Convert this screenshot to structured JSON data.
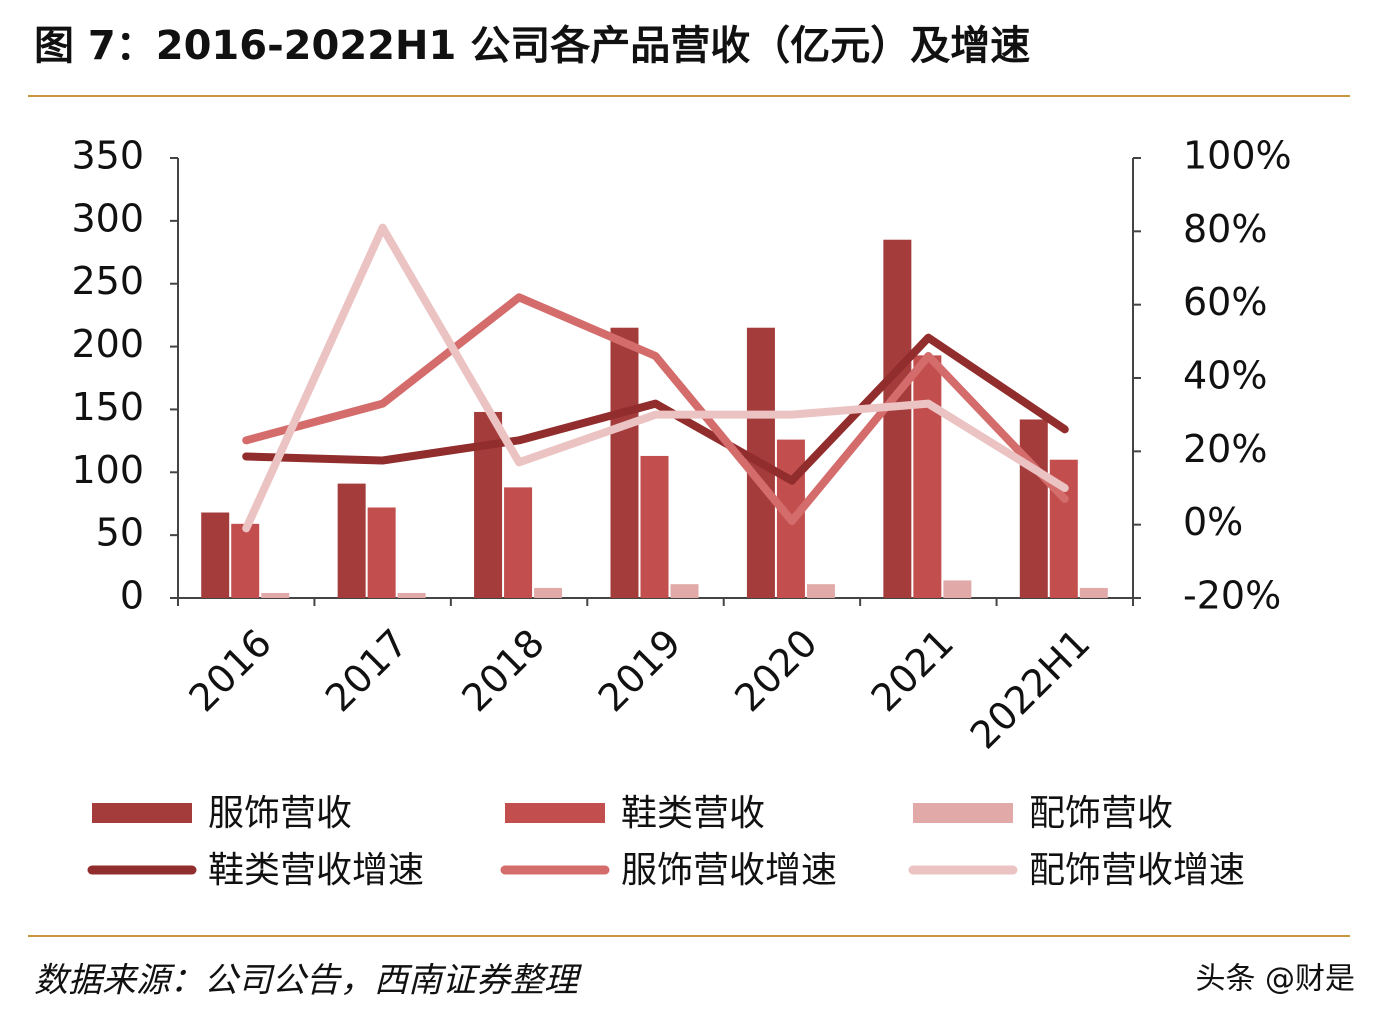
{
  "chart_data": {
    "type": "bar",
    "title": "图 7：2016-2022H1 公司各产品营收（亿元）及增速",
    "source": "数据来源：公司公告，西南证券整理",
    "watermark": "头条 @财是",
    "categories": [
      "2016",
      "2017",
      "2018",
      "2019",
      "2020",
      "2021",
      "2022H1"
    ],
    "series": [
      {
        "name": "服饰营收",
        "color": "#a53c3c",
        "values": [
          68,
          91,
          148,
          215,
          215,
          285,
          142
        ]
      },
      {
        "name": "鞋类营收",
        "color": "#c24e4e",
        "values": [
          59,
          72,
          88,
          113,
          126,
          193,
          110
        ]
      },
      {
        "name": "配饰营收",
        "color": "#e2a9a9",
        "values": [
          4,
          4,
          8,
          11,
          11,
          14,
          8
        ]
      },
      {
        "name": "鞋类营收增速",
        "type": "line",
        "axis": "y2",
        "color": "#922d2d",
        "values": [
          18.6,
          17.5,
          23,
          33,
          12,
          51,
          26
        ]
      },
      {
        "name": "服饰营收增速",
        "type": "line",
        "axis": "y2",
        "color": "#d46c6c",
        "values": [
          23,
          33,
          62,
          46,
          1,
          46,
          7
        ]
      },
      {
        "name": "配饰营收增速",
        "type": "line",
        "axis": "y2",
        "color": "#ecc3c3",
        "values": [
          -1,
          81,
          17,
          30,
          30,
          33,
          10
        ]
      }
    ],
    "ylim": [
      0,
      350
    ],
    "yticks": [
      0,
      50,
      100,
      150,
      200,
      250,
      300,
      350
    ],
    "y2lim": [
      -20,
      100
    ],
    "y2ticks": [
      {
        "value": -20,
        "label": "-20%"
      },
      {
        "value": 0,
        "label": "0%"
      },
      {
        "value": 20,
        "label": "20%"
      },
      {
        "value": 40,
        "label": "40%"
      },
      {
        "value": 60,
        "label": "60%"
      },
      {
        "value": 80,
        "label": "80%"
      },
      {
        "value": 100,
        "label": "100%"
      }
    ]
  }
}
